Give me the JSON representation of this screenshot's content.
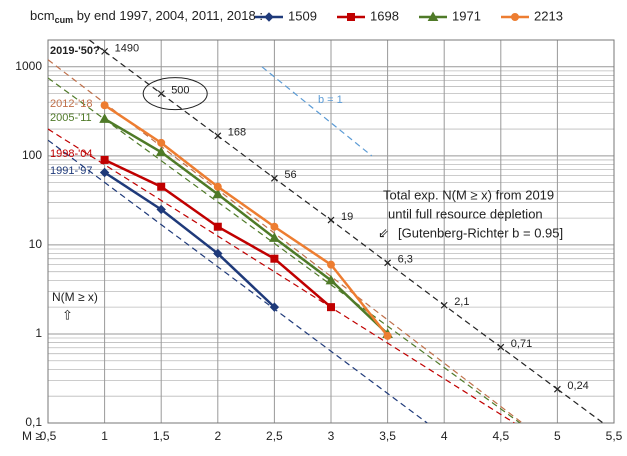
{
  "chart_data": {
    "type": "line",
    "log_y": true,
    "grid": true,
    "minor_grid": true,
    "title": {
      "main": "bcm",
      "sub": "cum",
      "rest": " by end 1997, 2004, 2011, 2018 :"
    },
    "x_axis_label": "M ≥",
    "xlim": [
      0.5,
      5.5
    ],
    "xticks": [
      {
        "value": 0.5,
        "label": "0,5"
      },
      1,
      {
        "value": 1.5,
        "label": "1,5"
      },
      2,
      {
        "value": 2.5,
        "label": "2,5"
      },
      3,
      {
        "value": 3.5,
        "label": "3,5"
      },
      4,
      {
        "value": 4.5,
        "label": "4,5"
      },
      5,
      {
        "value": 5.5,
        "label": "5,5"
      }
    ],
    "ylim": [
      0.1,
      2000
    ],
    "yticks": [
      {
        "value": 0.1,
        "label": "0,1"
      },
      1,
      10,
      100,
      1000
    ],
    "series": [
      {
        "name": "1509",
        "color": "#1f3a7a",
        "marker": "diamond",
        "x": [
          1,
          1.5,
          2,
          2.5
        ],
        "values": [
          65,
          25,
          8,
          2
        ]
      },
      {
        "name": "1698",
        "color": "#c00000",
        "marker": "square",
        "x": [
          1,
          1.5,
          2,
          2.5,
          3
        ],
        "values": [
          90,
          45,
          16,
          7,
          2
        ]
      },
      {
        "name": "1971",
        "color": "#4f7a28",
        "marker": "triangle",
        "x": [
          1,
          1.5,
          2,
          2.5,
          3,
          3.5
        ],
        "values": [
          260,
          110,
          37,
          12,
          4,
          1
        ]
      },
      {
        "name": "2213",
        "color": "#ed7d31",
        "marker": "circle",
        "x": [
          1,
          1.5,
          2,
          2.5,
          3,
          3.5
        ],
        "values": [
          370,
          140,
          45,
          16,
          6,
          0.95
        ]
      }
    ],
    "projection": {
      "color": "#222",
      "x": [
        1,
        1.5,
        2,
        2.5,
        3,
        3.5,
        4,
        4.5,
        5
      ],
      "values": [
        1490,
        500,
        168,
        56,
        19,
        6.3,
        2.1,
        0.71,
        0.24
      ],
      "value_labels": [
        "1490",
        "500",
        "168",
        "56",
        "19",
        "6,3",
        "2,1",
        "0,71",
        "0,24"
      ]
    },
    "fit_lines": [
      {
        "label": "1991-'97",
        "color": "#1f3a7a",
        "x": [
          0.5,
          3.85
        ],
        "values": [
          150,
          0.1
        ]
      },
      {
        "label": "1998-'04",
        "color": "#c00000",
        "x": [
          0.5,
          4.62
        ],
        "values": [
          200,
          0.1
        ]
      },
      {
        "label": "2005-'11",
        "color": "#4f7a28",
        "x": [
          0.5,
          4.67
        ],
        "values": [
          750,
          0.1
        ]
      },
      {
        "label": "2012-'18",
        "color": "#c0704a",
        "x": [
          0.5,
          4.69
        ],
        "values": [
          1200,
          0.1
        ]
      },
      {
        "label": "b = 1",
        "color": "#5b9bd5",
        "x": [
          2.39,
          3.36
        ],
        "values": [
          1000,
          100
        ]
      }
    ],
    "annotations": {
      "projection_label": "2019-'50?",
      "y_label": "N(M ≥ x)",
      "y_arrow": "⇧",
      "note_lines": [
        "Total exp. N(M ≥ x) from 2019",
        "until full resource depletion",
        "[Gutenberg-Richter b = 0.95]"
      ],
      "note_arrow": "⇙"
    }
  }
}
